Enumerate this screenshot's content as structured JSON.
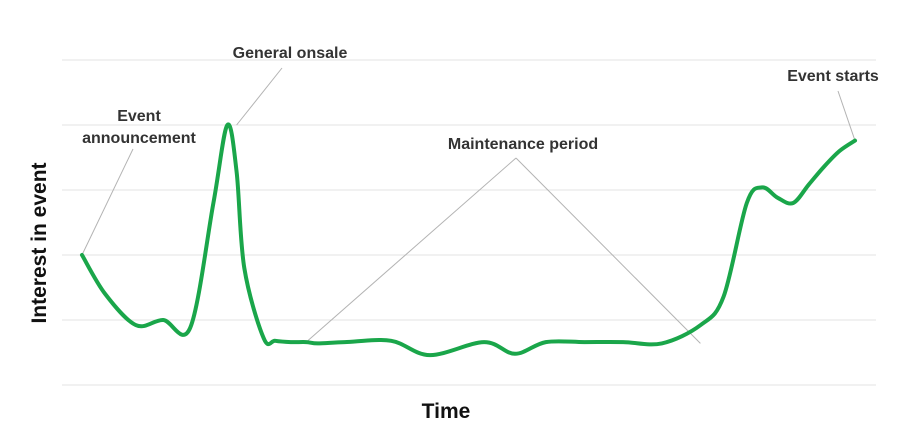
{
  "chart_data": {
    "type": "line",
    "title": "",
    "xlabel": "Time",
    "ylabel": "Interest in event",
    "xlim": [
      0,
      100
    ],
    "ylim": [
      0,
      100
    ],
    "grid": true,
    "tick_labels_shown": false,
    "line_color": "#1aa64a",
    "grid_color": "#e3e3e3",
    "leader_color": "#b3b3b3",
    "series": [
      {
        "x": [
          0,
          3,
          7,
          10.5,
          14,
          17,
          18.8,
          20,
          21,
          23.5,
          25,
          27,
          29,
          30.5,
          34,
          40,
          45,
          52,
          56,
          60,
          65,
          70,
          75,
          80,
          83,
          86,
          88,
          90,
          92,
          94,
          96,
          98,
          100
        ],
        "y": [
          50,
          35,
          23,
          25,
          22,
          70,
          100,
          82,
          45,
          18,
          17,
          16.5,
          16.5,
          16,
          16.5,
          17,
          11.5,
          16.5,
          12,
          16.5,
          16.5,
          16.5,
          16,
          23,
          34,
          70,
          76,
          72,
          70,
          77,
          84,
          90,
          94
        ]
      }
    ],
    "annotations": [
      {
        "text": "Event announcement",
        "lines": [
          "Event",
          "announcement"
        ],
        "target": [
          0,
          50
        ]
      },
      {
        "text": "General onsale",
        "lines": [
          "General onsale"
        ],
        "target": [
          20,
          100
        ]
      },
      {
        "text": "Maintenance period",
        "lines": [
          "Maintenance period"
        ],
        "targets": [
          [
            29,
            16.5
          ],
          [
            80,
            16
          ]
        ]
      },
      {
        "text": "Event starts",
        "lines": [
          "Event starts"
        ],
        "target": [
          100,
          94
        ]
      }
    ]
  }
}
